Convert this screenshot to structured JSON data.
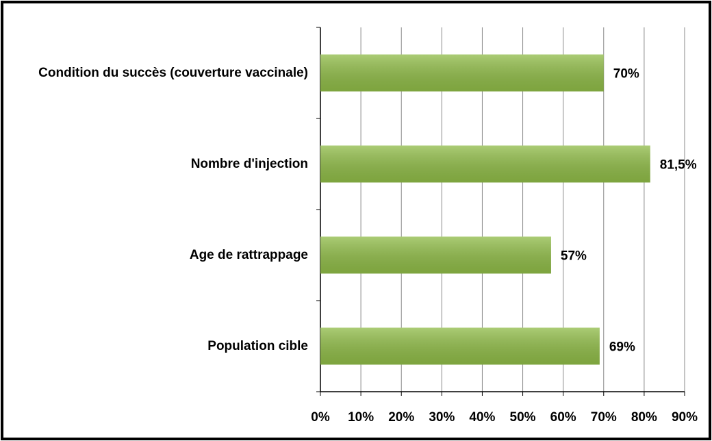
{
  "chart_data": {
    "type": "barh",
    "categories": [
      "Condition du succès (couverture vaccinale)",
      "Nombre d'injection",
      "Age de rattrappage",
      "Population cible"
    ],
    "values": [
      70,
      81.5,
      57,
      69
    ],
    "value_labels": [
      "70%",
      "81,5%",
      "57%",
      "69%"
    ],
    "color": "#8fbb47",
    "xlim": [
      0,
      90
    ],
    "xticks": [
      {
        "value": 0,
        "label": "0%"
      },
      {
        "value": 10,
        "label": "10%"
      },
      {
        "value": 20,
        "label": "20%"
      },
      {
        "value": 30,
        "label": "30%"
      },
      {
        "value": 40,
        "label": "40%"
      },
      {
        "value": 50,
        "label": "50%"
      },
      {
        "value": 60,
        "label": "60%"
      },
      {
        "value": 70,
        "label": "70%"
      },
      {
        "value": 80,
        "label": "80%"
      },
      {
        "value": 90,
        "label": "90%"
      }
    ],
    "grid": true
  }
}
